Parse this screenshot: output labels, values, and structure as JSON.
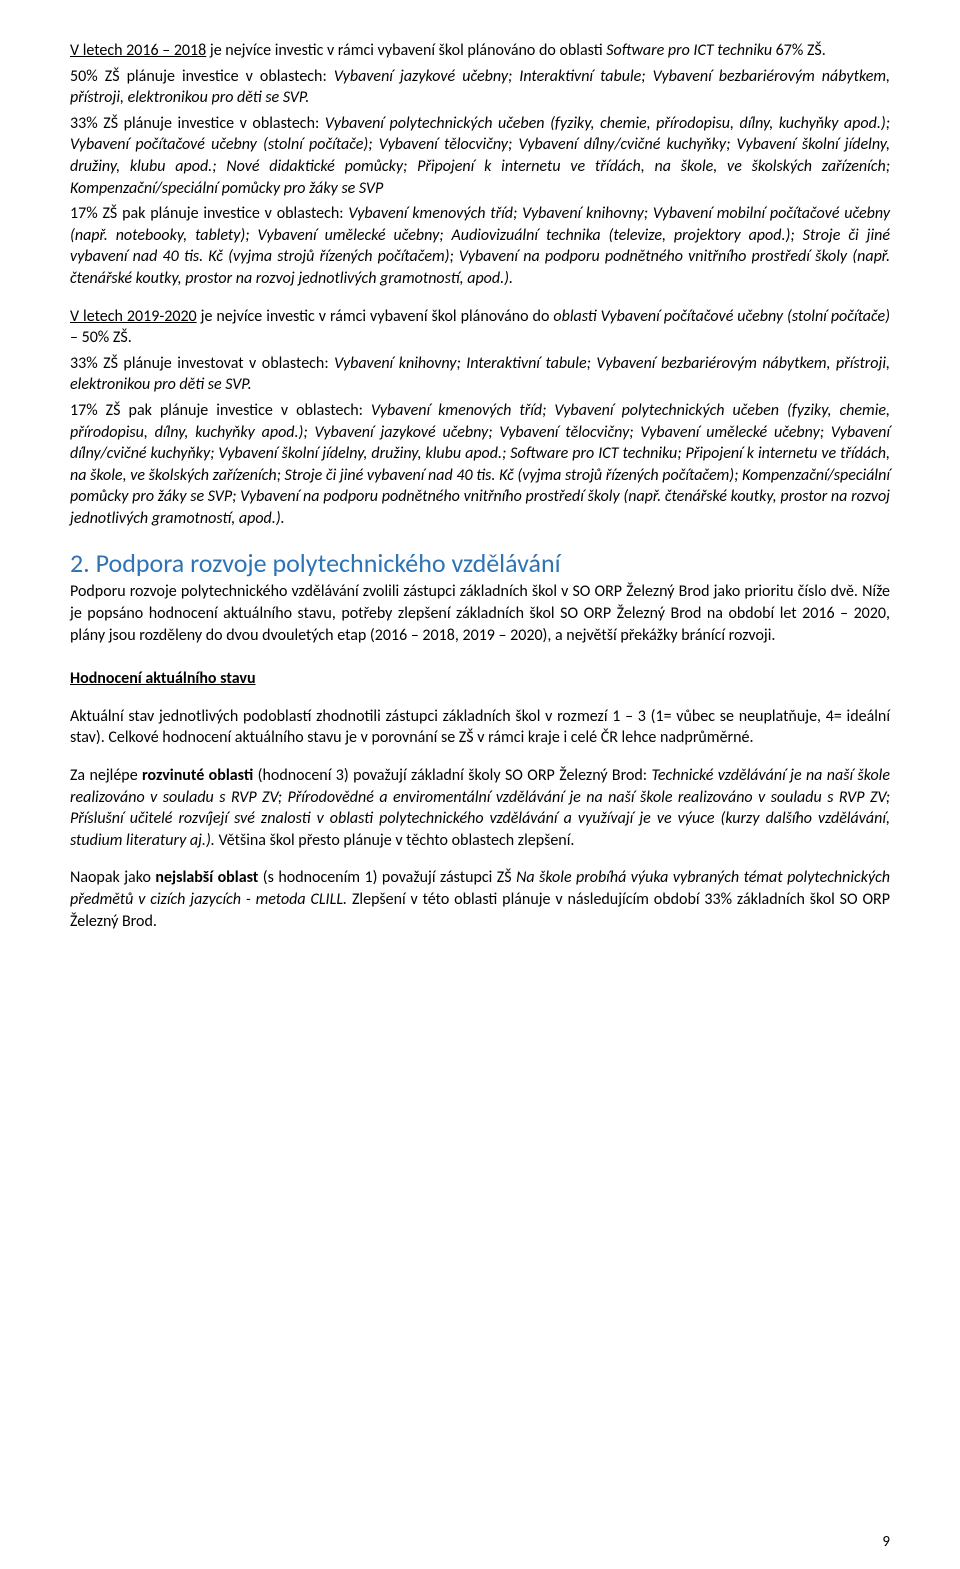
{
  "colors": {
    "text": "#000000",
    "background": "#ffffff",
    "heading": "#2e74b5"
  },
  "typography": {
    "body_family": "Calibri",
    "body_size_pt": 12,
    "heading_size_pt": 18,
    "line_height": 1.35
  },
  "para1a": "V letech 2016 – 2018",
  "para1b": " je nejvíce investic v rámci vybavení škol plánováno do oblasti ",
  "para1c": "Software pro ICT techniku",
  "para1d": " 67% ZŠ.",
  "para2a": "50% ZŠ plánuje investice v oblastech: ",
  "para2b": "Vybavení jazykové učebny; Interaktivní tabule; Vybavení bezbariérovým nábytkem, přístroji, elektronikou pro děti se SVP.",
  "para3a": "33% ZŠ plánuje investice v oblastech: ",
  "para3b": "Vybavení polytechnických učeben (fyziky, chemie, přírodopisu, dílny, kuchyňky apod.); Vybavení počítačové učebny (stolní počítače); Vybavení tělocvičny; Vybavení dílny/cvičné kuchyňky; Vybavení školní jídelny, družiny, klubu apod.; Nové didaktické pomůcky; Připojení k internetu ve třídách, na škole, ve školských zařízeních; Kompenzační/speciální pomůcky pro žáky se SVP",
  "para4a": "17% ZŠ pak plánuje investice v oblastech: ",
  "para4b": "Vybavení kmenových tříd; Vybavení knihovny; Vybavení mobilní počítačové učebny (např. notebooky, tablety); Vybavení umělecké učebny; Audiovizuální technika (televize, projektory apod.); Stroje či jiné vybavení nad 40 tis. Kč (vyjma strojů řízených počítačem); Vybavení na podporu podnětného vnitřního prostředí školy (např. čtenářské koutky, prostor na rozvoj jednotlivých gramotností, apod.).",
  "para5a": "V letech 2019-2020",
  "para5b": " je nejvíce investic v rámci vybavení škol plánováno do ",
  "para5c": "oblasti Vybavení počítačové učebny (stolní počítače)",
  "para5d": " – 50% ZŠ.",
  "para6a": "33% ZŠ plánuje investovat v oblastech: ",
  "para6b": "Vybavení knihovny; Interaktivní tabule; Vybavení bezbariérovým nábytkem, přístroji, elektronikou pro děti se SVP.",
  "para7a": "17% ZŠ pak plánuje investice v oblastech: ",
  "para7b": "Vybavení kmenových tříd; Vybavení polytechnických učeben (fyziky, chemie, přírodopisu, dílny, kuchyňky apod.); Vybavení jazykové učebny; Vybavení tělocvičny; Vybavení umělecké učebny; Vybavení dílny/cvičné kuchyňky; Vybavení školní jídelny, družiny, klubu apod.; Software pro ICT techniku; Připojení k internetu ve třídách, na škole, ve školských zařízeních; Stroje či jiné vybavení nad 40 tis. Kč (vyjma strojů řízených počítačem); Kompenzační/speciální pomůcky pro žáky se SVP; Vybavení na podporu podnětného vnitřního prostředí školy (např. čtenářské koutky, prostor na rozvoj jednotlivých gramotností, apod.).",
  "heading2": "2. Podpora rozvoje polytechnického vzdělávání",
  "para8": "Podporu rozvoje polytechnického vzdělávání zvolili zástupci základních škol v SO ORP Železný Brod jako prioritu číslo dvě. Níže je popsáno hodnocení aktuálního stavu, potřeby zlepšení základních škol SO ORP Železný Brod na období let 2016 – 2020, plány jsou rozděleny do dvou dvouletých etap (2016 – 2018, 2019 – 2020), a největší překážky bránící rozvoji.",
  "subhead1": "Hodnocení aktuálního stavu",
  "para9": "Aktuální stav jednotlivých podoblastí zhodnotili zástupci základních škol v rozmezí 1 – 3 (1= vůbec se neuplatňuje, 4= ideální stav). Celkové hodnocení aktuálního stavu je v porovnání se ZŠ v rámci kraje i celé ČR lehce nadprůměrné.",
  "para10a": "Za nejlépe ",
  "para10b": "rozvinuté oblasti",
  "para10c": " (hodnocení 3) považují základní školy SO ORP Železný Brod: ",
  "para10d": "Technické vzdělávání je na naší škole realizováno v souladu s RVP ZV; Přírodovědné a enviromentální vzdělávání je na naší škole realizováno v souladu s RVP ZV; Příslušní učitelé rozvíjejí své znalosti v oblasti polytechnického vzdělávání a využívají je ve výuce (kurzy dalšího vzdělávání, studium literatury aj.).",
  "para10e": " Většina škol přesto plánuje v těchto oblastech zlepšení.",
  "para11a": "Naopak jako ",
  "para11b": "nejslabší oblast",
  "para11c": " (s hodnocením 1) považují zástupci ZŠ ",
  "para11d": "Na škole probíhá výuka vybraných témat polytechnických předmětů v cizích jazycích - metoda CLILL.",
  "para11e": " Zlepšení v této oblasti plánuje v následujícím období 33% základních škol SO ORP Železný Brod.",
  "page_number": "9"
}
